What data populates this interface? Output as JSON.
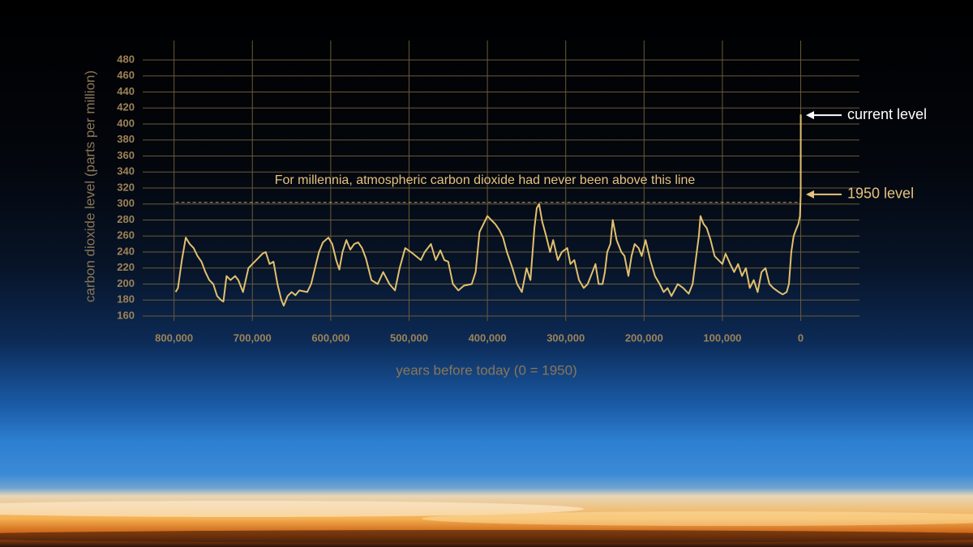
{
  "chart_data": {
    "type": "line",
    "xlabel": "years before today (0 = 1950)",
    "ylabel": "carbon dioxide level (parts per million)",
    "xlim": [
      840000,
      -75000
    ],
    "ylim": [
      160,
      480
    ],
    "xticks": [
      {
        "value": 800000,
        "label": "800,000"
      },
      {
        "value": 700000,
        "label": "700,000"
      },
      {
        "value": 600000,
        "label": "600,000"
      },
      {
        "value": 500000,
        "label": "500,000"
      },
      {
        "value": 400000,
        "label": "400,000"
      },
      {
        "value": 300000,
        "label": "300,000"
      },
      {
        "value": 200000,
        "label": "200,000"
      },
      {
        "value": 100000,
        "label": "100,000"
      },
      0
    ],
    "yticks": [
      160,
      180,
      200,
      220,
      240,
      260,
      280,
      300,
      320,
      340,
      360,
      380,
      400,
      420,
      440,
      460,
      480
    ],
    "grid": true,
    "grid_color": "#6b5a38",
    "color": "#e2c06e",
    "x": [
      798000,
      795000,
      790000,
      785000,
      780000,
      775000,
      770000,
      765000,
      760000,
      755000,
      750000,
      745000,
      740000,
      737000,
      733000,
      728000,
      722000,
      718000,
      712000,
      705000,
      700000,
      693000,
      687000,
      683000,
      678000,
      673000,
      668000,
      663000,
      660000,
      655000,
      650000,
      645000,
      640000,
      630000,
      625000,
      620000,
      615000,
      610000,
      603000,
      598000,
      593000,
      589000,
      585000,
      580000,
      575000,
      570000,
      565000,
      560000,
      555000,
      548000,
      540000,
      533000,
      525000,
      518000,
      512000,
      505000,
      495000,
      485000,
      480000,
      472000,
      466000,
      460000,
      455000,
      450000,
      444000,
      437000,
      430000,
      420000,
      415000,
      410000,
      405000,
      400000,
      395000,
      390000,
      385000,
      380000,
      375000,
      368000,
      362000,
      356000,
      350000,
      345000,
      340000,
      337000,
      334000,
      330000,
      325000,
      320000,
      316000,
      310000,
      305000,
      298000,
      294000,
      289000,
      283000,
      277000,
      272000,
      266000,
      262000,
      258000,
      253000,
      250000,
      247000,
      243000,
      240000,
      235000,
      229000,
      225000,
      220000,
      216000,
      212000,
      207000,
      203000,
      198000,
      192000,
      186000,
      180000,
      175000,
      170000,
      165000,
      157000,
      150000,
      143000,
      138000,
      130000,
      128000,
      124000,
      120000,
      115000,
      110000,
      105000,
      100000,
      96000,
      90000,
      85000,
      80000,
      75000,
      70000,
      65000,
      60000,
      55000,
      50000,
      45000,
      40000,
      35000,
      28000,
      23000,
      18000,
      15000,
      12000,
      9000,
      6000,
      3000,
      1000,
      0,
      -70
    ],
    "values": [
      190,
      195,
      230,
      258,
      250,
      245,
      235,
      228,
      215,
      205,
      200,
      185,
      180,
      178,
      210,
      205,
      210,
      205,
      190,
      220,
      225,
      232,
      238,
      240,
      225,
      228,
      200,
      180,
      173,
      185,
      190,
      186,
      192,
      190,
      200,
      220,
      240,
      252,
      258,
      250,
      230,
      218,
      240,
      255,
      243,
      250,
      252,
      245,
      232,
      205,
      200,
      215,
      200,
      192,
      220,
      245,
      238,
      230,
      240,
      250,
      230,
      242,
      230,
      228,
      200,
      192,
      198,
      200,
      215,
      265,
      275,
      285,
      280,
      275,
      268,
      258,
      240,
      220,
      200,
      190,
      220,
      205,
      270,
      295,
      300,
      278,
      260,
      240,
      255,
      230,
      240,
      245,
      225,
      230,
      205,
      195,
      200,
      215,
      225,
      200,
      200,
      215,
      240,
      250,
      280,
      255,
      240,
      235,
      210,
      235,
      250,
      245,
      235,
      255,
      230,
      210,
      200,
      190,
      195,
      185,
      200,
      195,
      188,
      200,
      260,
      285,
      275,
      270,
      255,
      235,
      230,
      225,
      238,
      225,
      215,
      225,
      210,
      220,
      195,
      205,
      190,
      215,
      220,
      200,
      195,
      190,
      187,
      190,
      200,
      240,
      260,
      268,
      275,
      285,
      311,
      412
    ],
    "annotations": [
      {
        "text": "For millennia, atmospheric carbon dioxide had never been above this line",
        "y": 302
      },
      {
        "text": "current level",
        "y": 411
      },
      {
        "text": "1950 level",
        "y": 312
      }
    ]
  }
}
